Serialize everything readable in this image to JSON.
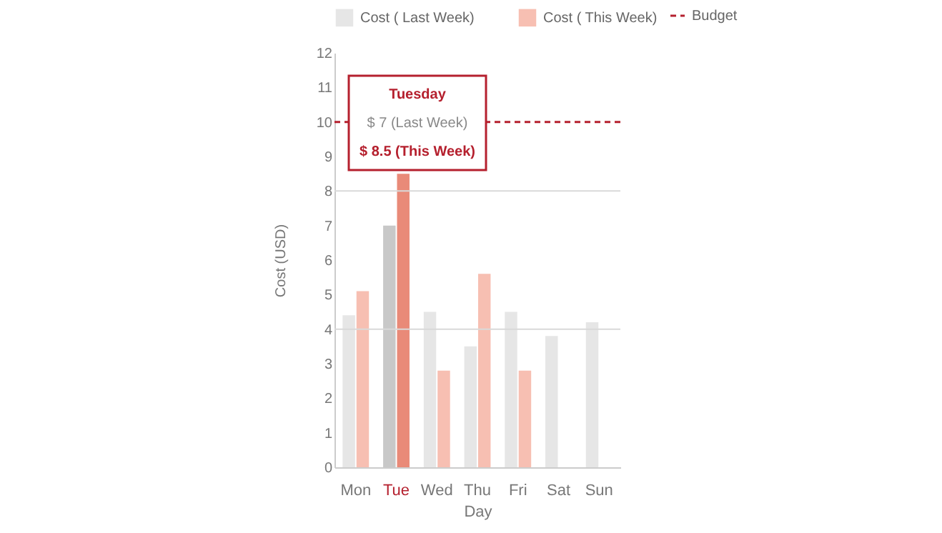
{
  "chart_data": {
    "type": "bar",
    "xlabel": "Day",
    "ylabel": "Cost (USD)",
    "categories": [
      "Mon",
      "Tue",
      "Wed",
      "Thu",
      "Fri",
      "Sat",
      "Sun"
    ],
    "series": [
      {
        "name": "Cost ( Last Week)",
        "color": "#e6e6e6",
        "colors": [
          "#e6e6e6",
          "#c8c8c8",
          "#e6e6e6",
          "#e6e6e6",
          "#e6e6e6",
          "#e6e6e6",
          "#e6e6e6"
        ],
        "values": [
          4.4,
          7,
          4.5,
          3.5,
          4.5,
          3.8,
          4.2
        ]
      },
      {
        "name": "Cost ( This Week)",
        "color": "#f7bfb2",
        "colors": [
          "#f7bfb2",
          "#e98a78",
          "#f7bfb2",
          "#f7bfb2",
          "#f7bfb2",
          null,
          null
        ],
        "values": [
          5.1,
          8.5,
          2.8,
          5.6,
          2.8,
          null,
          null
        ]
      }
    ],
    "ylim": [
      0,
      12
    ],
    "yticks": [
      0,
      1,
      2,
      3,
      4,
      5,
      6,
      7,
      8,
      9,
      10,
      11,
      12
    ],
    "ref_lines": [
      {
        "axis": "y",
        "value": 10,
        "label": "Budget",
        "color": "#b5202e",
        "line_style": "dashed"
      },
      {
        "axis": "y",
        "value": 8,
        "color": "#d9d9d9",
        "line_style": "solid"
      },
      {
        "axis": "y",
        "value": 4,
        "color": "#d9d9d9",
        "line_style": "solid"
      }
    ],
    "annotations": [
      "Tuesday",
      "$ 7 (Last Week)",
      "$ 8.5 (This Week)"
    ],
    "legend": "top",
    "grid": false
  }
}
